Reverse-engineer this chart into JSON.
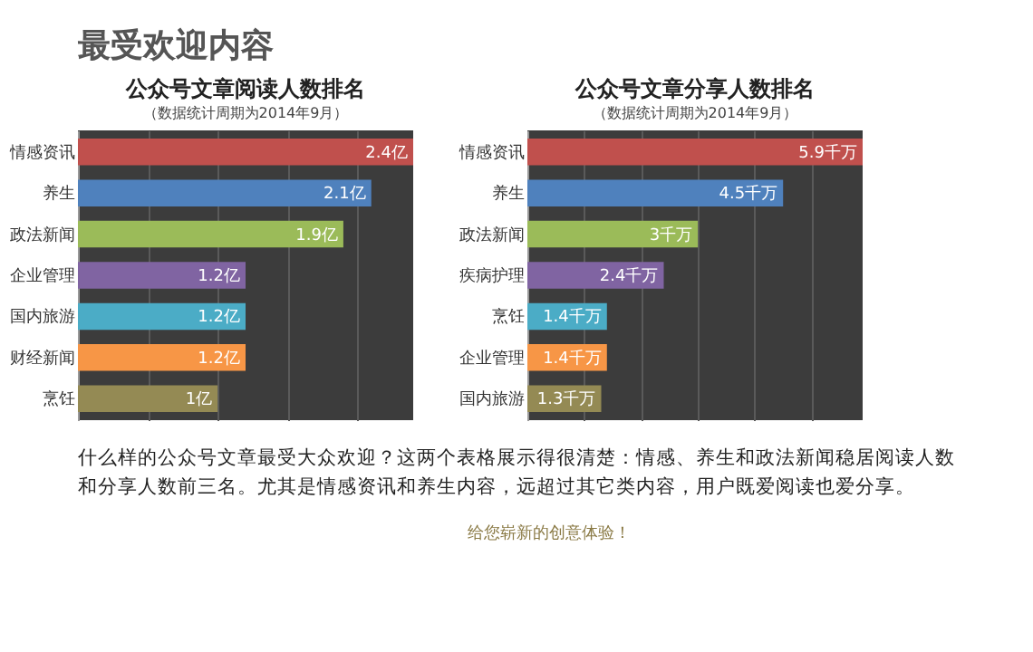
{
  "chart_data": [
    {
      "type": "bar",
      "orientation": "horizontal",
      "title": "公众号文章阅读人数排名",
      "subtitle": "（数据统计周期为2014年9月）",
      "categories": [
        "情感资讯",
        "养生",
        "政法新闻",
        "企业管理",
        "国内旅游",
        "财经新闻",
        "烹饪"
      ],
      "values": [
        2.4,
        2.1,
        1.9,
        1.2,
        1.2,
        1.2,
        1
      ],
      "value_labels": [
        "2.4亿",
        "2.1亿",
        "1.9亿",
        "1.2亿",
        "1.2亿",
        "1.2亿",
        "1亿"
      ],
      "colors": [
        "#c0504d",
        "#4f81bd",
        "#9bbb59",
        "#8064a2",
        "#4bacc6",
        "#f79646",
        "#948a54"
      ],
      "grid": "x",
      "tick_labels": "y",
      "legend": false,
      "annotations": [
        "最受欢迎内容",
        "什么样的公众号文章最受大众欢迎？这两个表格展示得很清楚：情感、养生和政法新闻稳居阅读人数和分享人数前三名。尤其是情感资讯和养生内容，远超过其它类内容，用户既爱阅读也爱分享。",
        "给您崭新的创意体验！"
      ]
    },
    {
      "type": "bar",
      "orientation": "horizontal",
      "title": "公众号文章分享人数排名",
      "subtitle": "（数据统计周期为2014年9月）",
      "categories": [
        "情感资讯",
        "养生",
        "政法新闻",
        "疾病护理",
        "烹饪",
        "企业管理",
        "国内旅游"
      ],
      "values": [
        5.9,
        4.5,
        3,
        2.4,
        1.4,
        1.4,
        1.3
      ],
      "value_labels": [
        "5.9千万",
        "4.5千万",
        "3千万",
        "2.4千万",
        "1.4千万",
        "1.4千万",
        "1.3千万"
      ],
      "colors": [
        "#c0504d",
        "#4f81bd",
        "#9bbb59",
        "#8064a2",
        "#4bacc6",
        "#f79646",
        "#948a54"
      ],
      "grid": "x",
      "tick_labels": "y",
      "legend": false
    }
  ]
}
